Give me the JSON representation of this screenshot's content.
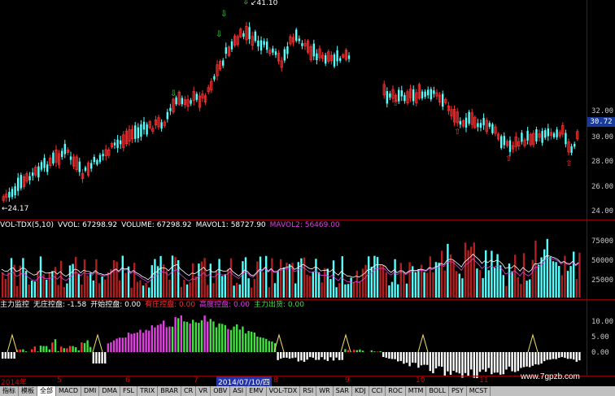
{
  "price_panel": {
    "y_ticks": [
      "32.00",
      "30.00",
      "28.00",
      "26.00",
      "24.00"
    ],
    "current_price": "30.72",
    "high_label": "41.10",
    "low_label": "24.17"
  },
  "volume_panel": {
    "indicator": "VOL-TDX(5,10)",
    "vvol": "VVOL: 67298.92",
    "volume": "VOLUME: 67298.92",
    "mavol1": "MAVOL1: 58727.90",
    "mavol2": "MAVOL2: 56469.00",
    "y_ticks": [
      "75000",
      "50000",
      "25000"
    ]
  },
  "indicator_panel": {
    "name": "主力监控",
    "items": [
      {
        "label": "无庄控盘: -1.58",
        "color": "#ffffff"
      },
      {
        "label": "开始控盘: 0.00",
        "color": "#ffffff"
      },
      {
        "label": "有庄控盘: 0.00",
        "color": "#ff3030"
      },
      {
        "label": "高度控盘: 0.00",
        "color": "#e040e0"
      },
      {
        "label": "主力出货: 0.00",
        "color": "#40e040"
      }
    ],
    "y_ticks": [
      "10.00",
      "5.00",
      "0.00"
    ]
  },
  "date_axis": {
    "months": [
      "2014年",
      "5",
      "6",
      "7",
      "8",
      "9",
      "10",
      "11"
    ],
    "selected_date": "2014/07/10/四"
  },
  "tabs": [
    "指标",
    "模板",
    "全部",
    "MACD",
    "DMI",
    "DMA",
    "FSL",
    "TRIX",
    "BRAR",
    "CR",
    "VR",
    "OBV",
    "ASI",
    "EMV",
    "VOL-TDX",
    "RSI",
    "WR",
    "SAR",
    "KDJ",
    "CCI",
    "ROC",
    "MTM",
    "BOLL",
    "PSY",
    "MCST"
  ],
  "active_tab": "全部",
  "watermark": "www.7gpzb.com",
  "colors": {
    "up": "#ff3030",
    "down": "#54ffff",
    "grid": "#8b0000",
    "pink": "#e040e0",
    "green": "#40e040"
  }
}
